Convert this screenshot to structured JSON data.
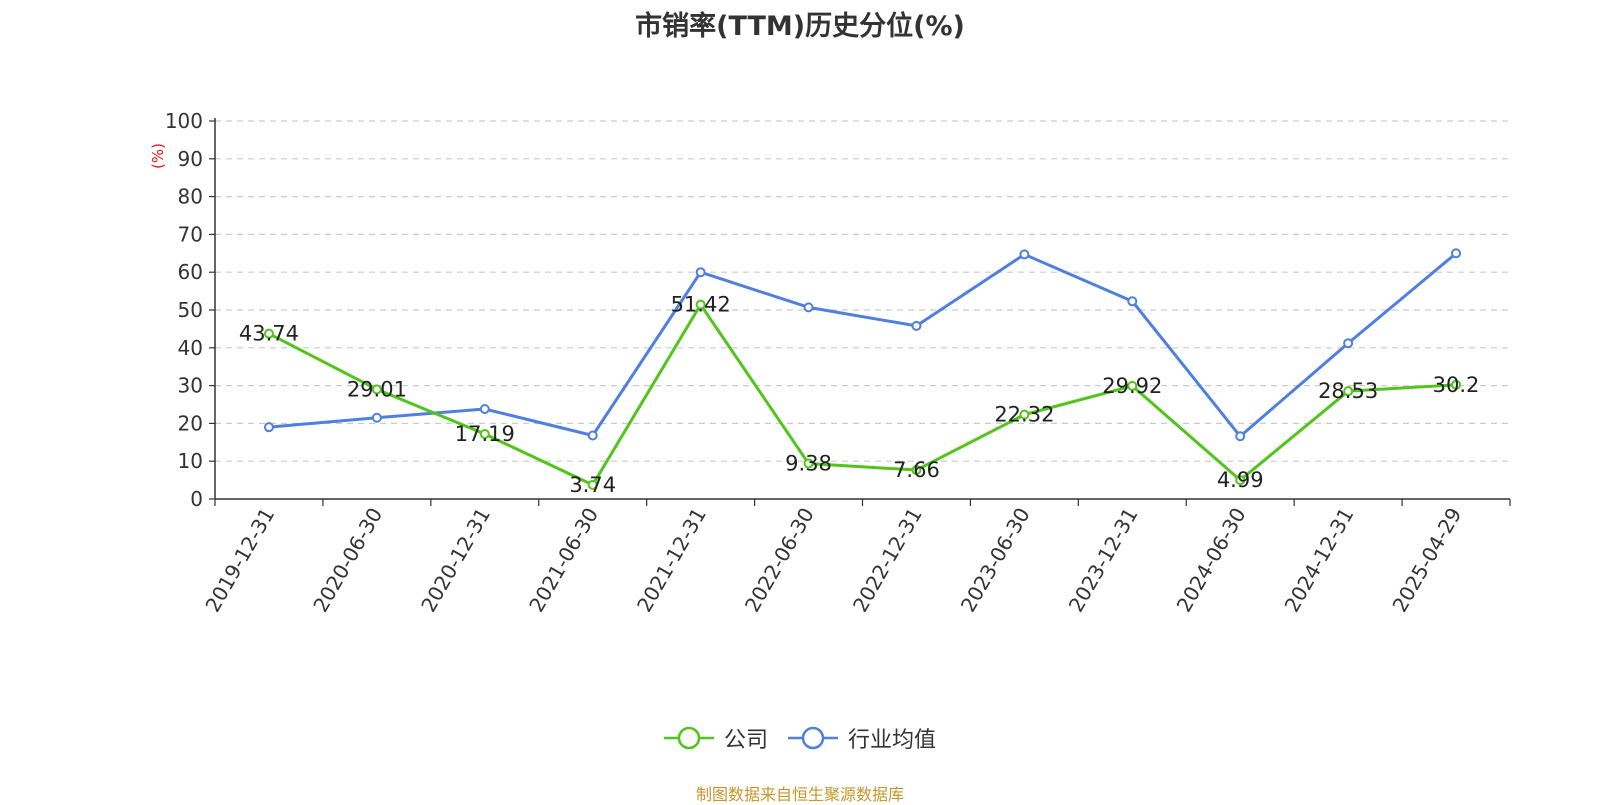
{
  "title": "市销率(TTM)历史分位(%)",
  "source_text": "制图数据来自恒生聚源数据库",
  "colors": {
    "company": "#52c41a",
    "industry": "#4f7fdf",
    "unit_label": "#e8141b",
    "source": "#c8962a"
  },
  "chart_data": {
    "type": "line",
    "title": "市销率(TTM)历史分位(%)",
    "ylabel": "(%)",
    "xlabel": "",
    "ylim": [
      0,
      100
    ],
    "yticks": [
      0,
      10,
      20,
      30,
      40,
      50,
      60,
      70,
      80,
      90,
      100
    ],
    "grid": true,
    "legend_position": "bottom-center",
    "categories": [
      "2019-12-31",
      "2020-06-30",
      "2020-12-31",
      "2021-06-30",
      "2021-12-31",
      "2022-06-30",
      "2022-12-31",
      "2023-06-30",
      "2023-12-31",
      "2024-06-30",
      "2024-12-31",
      "2025-04-29"
    ],
    "series": [
      {
        "name": "公司",
        "color": "#52c41a",
        "values": [
          43.74,
          29.01,
          17.19,
          3.74,
          51.42,
          9.38,
          7.66,
          22.32,
          29.92,
          4.99,
          28.53,
          30.2
        ],
        "labels": [
          "43.74",
          "29.01",
          "17.19",
          "3.74",
          "51.42",
          "9.38",
          "7.66",
          "22.32",
          "29.92",
          "4.99",
          "28.53",
          "30.2"
        ]
      },
      {
        "name": "行业均值",
        "color": "#4f7fdf",
        "values": [
          19,
          21.5,
          23.8,
          16.8,
          60,
          50.7,
          45.8,
          64.7,
          52.3,
          16.6,
          41.2,
          65
        ]
      }
    ]
  }
}
